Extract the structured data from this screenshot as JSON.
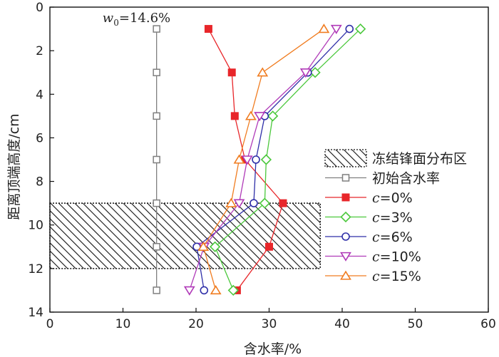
{
  "chart_data": {
    "type": "line",
    "xlabel": "含水率/%",
    "ylabel": "距离顶端高度/cm",
    "xlim": [
      0,
      60
    ],
    "ylim": [
      0,
      14
    ],
    "y_inverted": true,
    "x_ticks": [
      0,
      10,
      20,
      30,
      40,
      50,
      60
    ],
    "y_ticks": [
      0,
      2,
      4,
      6,
      8,
      10,
      12,
      14
    ],
    "grid": false,
    "legend_position": "right",
    "annotation": {
      "var": "w",
      "sub": "0",
      "text": "=14.6%",
      "x": 7.2,
      "y": 0.3
    },
    "region": {
      "name": "冻结锋面分布区",
      "x0": 0,
      "x1": 37,
      "y0": 9,
      "y1": 12
    },
    "series": [
      {
        "name": "初始含水率",
        "color": "#7f7f7f",
        "marker": "square-open",
        "points": [
          [
            14.6,
            1
          ],
          [
            14.6,
            3
          ],
          [
            14.6,
            5
          ],
          [
            14.6,
            7
          ],
          [
            14.6,
            9
          ],
          [
            14.6,
            11
          ],
          [
            14.6,
            13
          ]
        ]
      },
      {
        "name_prefix": "c",
        "name_suffix": "=0%",
        "color": "#e8262a",
        "marker": "square-filled",
        "points": [
          [
            21.7,
            1
          ],
          [
            24.9,
            3
          ],
          [
            25.3,
            5
          ],
          [
            26.7,
            7
          ],
          [
            31.9,
            9
          ],
          [
            30.0,
            11
          ],
          [
            25.6,
            13
          ]
        ]
      },
      {
        "name_prefix": "c",
        "name_suffix": "=3%",
        "color": "#4bc83c",
        "marker": "diamond-open",
        "points": [
          [
            42.5,
            1
          ],
          [
            36.3,
            3
          ],
          [
            30.5,
            5
          ],
          [
            29.6,
            7
          ],
          [
            29.4,
            9
          ],
          [
            22.6,
            11
          ],
          [
            25.1,
            13
          ]
        ]
      },
      {
        "name_prefix": "c",
        "name_suffix": "=6%",
        "color": "#2f2fa8",
        "marker": "circle-open",
        "points": [
          [
            41.0,
            1
          ],
          [
            35.3,
            3
          ],
          [
            29.4,
            5
          ],
          [
            28.2,
            7
          ],
          [
            27.9,
            9
          ],
          [
            20.1,
            11
          ],
          [
            21.1,
            13
          ]
        ]
      },
      {
        "name_prefix": "c",
        "name_suffix": "=10%",
        "color": "#b03ab8",
        "marker": "triangle-down-open",
        "points": [
          [
            39.2,
            1
          ],
          [
            35.0,
            3
          ],
          [
            28.7,
            5
          ],
          [
            27.0,
            7
          ],
          [
            25.9,
            9
          ],
          [
            21.1,
            11
          ],
          [
            19.1,
            13
          ]
        ]
      },
      {
        "name_prefix": "c",
        "name_suffix": "=15%",
        "color": "#f07c20",
        "marker": "triangle-up-open",
        "points": [
          [
            37.5,
            1
          ],
          [
            29.1,
            3
          ],
          [
            27.5,
            5
          ],
          [
            25.9,
            7
          ],
          [
            24.8,
            9
          ],
          [
            21.0,
            11
          ],
          [
            22.7,
            13
          ]
        ]
      }
    ]
  }
}
